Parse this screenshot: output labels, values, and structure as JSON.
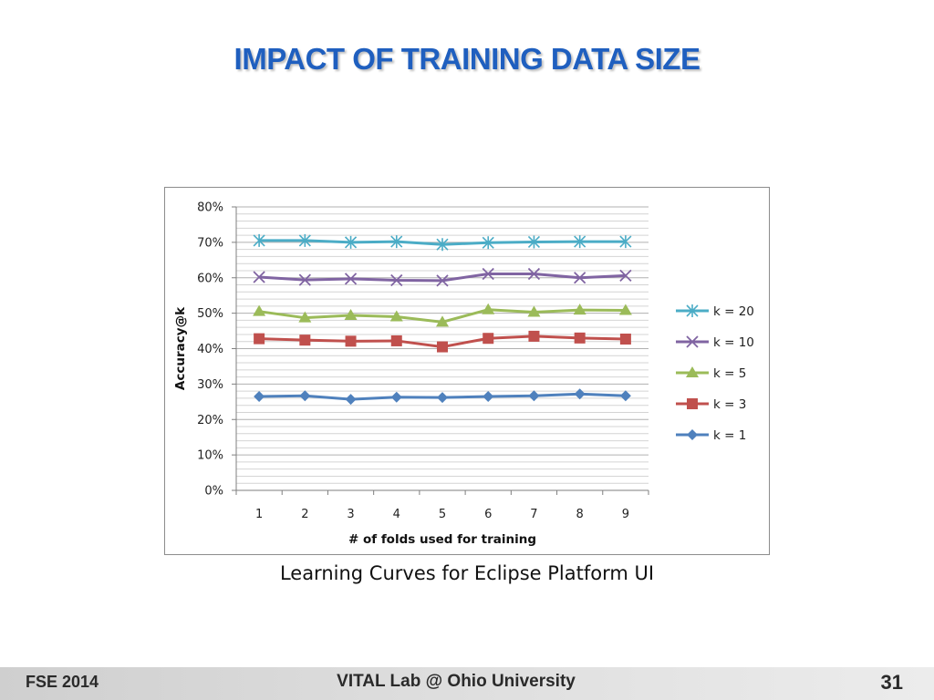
{
  "slide": {
    "title": "IMPACT OF TRAINING DATA SIZE",
    "caption": "Learning Curves for Eclipse Platform UI"
  },
  "footer": {
    "left": "FSE 2014",
    "center": "VITAL Lab @ Ohio University",
    "page_number": "31"
  },
  "chart_data": {
    "type": "line",
    "xlabel": "# of folds used for training",
    "ylabel": "Accuracy@k",
    "x": [
      1,
      2,
      3,
      4,
      5,
      6,
      7,
      8,
      9
    ],
    "ylim": [
      0,
      0.8
    ],
    "yticks": [
      "0%",
      "10%",
      "20%",
      "30%",
      "40%",
      "50%",
      "60%",
      "70%",
      "80%"
    ],
    "grid": "horizontal",
    "legend_position": "right",
    "series": [
      {
        "name": "k = 20",
        "color": "#4bacc6",
        "marker": "star",
        "values": [
          0.705,
          0.705,
          0.7,
          0.702,
          0.694,
          0.699,
          0.701,
          0.702,
          0.702
        ]
      },
      {
        "name": "k = 10",
        "color": "#8064a2",
        "marker": "x",
        "values": [
          0.602,
          0.594,
          0.597,
          0.593,
          0.592,
          0.611,
          0.611,
          0.6,
          0.606
        ]
      },
      {
        "name": "k = 5",
        "color": "#9bbb59",
        "marker": "triangle",
        "values": [
          0.505,
          0.487,
          0.494,
          0.49,
          0.475,
          0.51,
          0.503,
          0.509,
          0.508
        ]
      },
      {
        "name": "k = 3",
        "color": "#c0504d",
        "marker": "square",
        "values": [
          0.428,
          0.424,
          0.421,
          0.422,
          0.405,
          0.429,
          0.435,
          0.43,
          0.427
        ]
      },
      {
        "name": "k = 1",
        "color": "#4f81bd",
        "marker": "diamond",
        "values": [
          0.265,
          0.267,
          0.257,
          0.263,
          0.262,
          0.265,
          0.267,
          0.272,
          0.267
        ]
      }
    ]
  }
}
